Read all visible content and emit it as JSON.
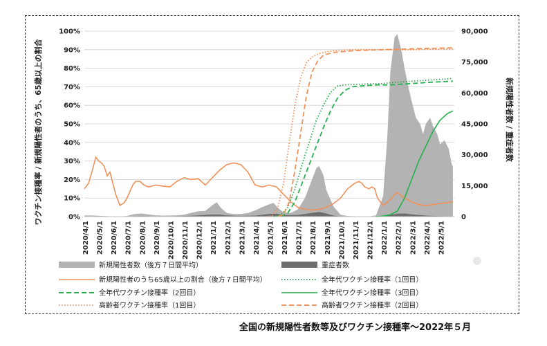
{
  "chart_data": {
    "type": "area",
    "title": "全国の新規陽性者数等及びワクチン接種率〜2022年５月",
    "ylabel_left": "ワクチン接種率 / 新規陽性者のうち、65歳以上の割合",
    "ylabel_right": "新規陽性者数 / 重症者数",
    "ylim_left": [
      0,
      100
    ],
    "ylim_right": [
      0,
      90000
    ],
    "left_ticks": [
      "0%",
      "10%",
      "20%",
      "30%",
      "40%",
      "50%",
      "60%",
      "70%",
      "80%",
      "90%",
      "100%"
    ],
    "right_ticks": [
      "0",
      "15,000",
      "30,000",
      "45,000",
      "60,000",
      "75,000",
      "90,000"
    ],
    "x_ticks": [
      "2020/4/1",
      "2020/5/1",
      "2020/6/1",
      "2020/7/1",
      "2020/8/1",
      "2020/9/1",
      "2020/10/1",
      "2020/11/1",
      "2020/12/1",
      "2021/1/1",
      "2021/2/1",
      "2021/3/1",
      "2021/4/1",
      "2021/5/1",
      "2021/6/1",
      "2021/7/1",
      "2021/8/1",
      "2021/9/1",
      "2021/10/1",
      "2021/11/1",
      "2021/12/1",
      "2022/1/1",
      "2022/2/1",
      "2022/3/1",
      "2022/4/1",
      "2022/5/1"
    ],
    "grid": true,
    "legend_position": "bottom",
    "series": [
      {
        "name": "新規陽性者数（後方７日間平均）",
        "axis": "right",
        "kind": "area",
        "color": "#b3b3b3",
        "points": [
          [
            0,
            600
          ],
          [
            0.5,
            550
          ],
          [
            1,
            400
          ],
          [
            1.5,
            250
          ],
          [
            2,
            80
          ],
          [
            2.5,
            100
          ],
          [
            3,
            350
          ],
          [
            3.5,
            1200
          ],
          [
            4,
            1500
          ],
          [
            4.5,
            1100
          ],
          [
            5,
            600
          ],
          [
            5.5,
            500
          ],
          [
            6,
            550
          ],
          [
            6.5,
            600
          ],
          [
            7,
            900
          ],
          [
            7.5,
            1800
          ],
          [
            8,
            2600
          ],
          [
            8.5,
            2800
          ],
          [
            9,
            5600
          ],
          [
            9.3,
            7000
          ],
          [
            9.6,
            4200
          ],
          [
            10,
            1800
          ],
          [
            10.5,
            1200
          ],
          [
            11,
            1300
          ],
          [
            11.5,
            1700
          ],
          [
            12,
            3000
          ],
          [
            12.5,
            4600
          ],
          [
            13,
            6000
          ],
          [
            13.3,
            6600
          ],
          [
            13.6,
            4300
          ],
          [
            14,
            2000
          ],
          [
            14.5,
            1700
          ],
          [
            15,
            3500
          ],
          [
            15.5,
            9000
          ],
          [
            16,
            18000
          ],
          [
            16.3,
            23500
          ],
          [
            16.5,
            24500
          ],
          [
            16.8,
            20000
          ],
          [
            17,
            13000
          ],
          [
            17.5,
            5000
          ],
          [
            18,
            900
          ],
          [
            18.5,
            300
          ],
          [
            19,
            170
          ],
          [
            19.5,
            140
          ],
          [
            20,
            150
          ],
          [
            20.5,
            600
          ],
          [
            21,
            10000
          ],
          [
            21.3,
            40000
          ],
          [
            21.5,
            70000
          ],
          [
            21.8,
            87000
          ],
          [
            22,
            88500
          ],
          [
            22.3,
            80000
          ],
          [
            22.5,
            72000
          ],
          [
            22.8,
            62000
          ],
          [
            23,
            56000
          ],
          [
            23.3,
            48000
          ],
          [
            23.6,
            45000
          ],
          [
            23.8,
            40000
          ],
          [
            24,
            45000
          ],
          [
            24.3,
            48000
          ],
          [
            24.5,
            44000
          ],
          [
            24.8,
            40000
          ],
          [
            25,
            35000
          ],
          [
            25.3,
            37000
          ],
          [
            25.6,
            33000
          ],
          [
            25.8,
            26000
          ],
          [
            25.9,
            24000
          ]
        ]
      },
      {
        "name": "重症者数",
        "axis": "right",
        "kind": "area",
        "color": "#6e6e6e",
        "points": [
          [
            0,
            100
          ],
          [
            1,
            200
          ],
          [
            2,
            80
          ],
          [
            3,
            100
          ],
          [
            4,
            250
          ],
          [
            5,
            150
          ],
          [
            6,
            150
          ],
          [
            7,
            300
          ],
          [
            8,
            600
          ],
          [
            9,
            1000
          ],
          [
            9.5,
            1000
          ],
          [
            10,
            600
          ],
          [
            11,
            350
          ],
          [
            12,
            500
          ],
          [
            13,
            1300
          ],
          [
            13.5,
            1400
          ],
          [
            14,
            700
          ],
          [
            15,
            800
          ],
          [
            16,
            1800
          ],
          [
            16.5,
            2200
          ],
          [
            17,
            1500
          ],
          [
            17.5,
            500
          ],
          [
            18,
            100
          ],
          [
            19,
            60
          ],
          [
            20,
            40
          ],
          [
            21,
            200
          ],
          [
            22,
            1400
          ],
          [
            22.5,
            1500
          ],
          [
            23,
            1100
          ],
          [
            24,
            500
          ],
          [
            25,
            250
          ],
          [
            25.9,
            150
          ]
        ]
      },
      {
        "name": "新規陽性者のうち65歳以上の割合（後方７日間平均）",
        "axis": "left",
        "kind": "line",
        "style": "solid",
        "color": "#f0915a",
        "points": [
          [
            0,
            15
          ],
          [
            0.3,
            18
          ],
          [
            0.6,
            26
          ],
          [
            0.8,
            32
          ],
          [
            1,
            30
          ],
          [
            1.2,
            29
          ],
          [
            1.4,
            27
          ],
          [
            1.6,
            22
          ],
          [
            1.8,
            24
          ],
          [
            2,
            18
          ],
          [
            2.2,
            12
          ],
          [
            2.5,
            6
          ],
          [
            2.8,
            7.5
          ],
          [
            3,
            10
          ],
          [
            3.4,
            17
          ],
          [
            3.6,
            19
          ],
          [
            3.9,
            19
          ],
          [
            4.2,
            17
          ],
          [
            4.5,
            16
          ],
          [
            5,
            17
          ],
          [
            5.5,
            16.5
          ],
          [
            6,
            16
          ],
          [
            6.5,
            19
          ],
          [
            7,
            21
          ],
          [
            7.5,
            20
          ],
          [
            8,
            20.5
          ],
          [
            8.5,
            17
          ],
          [
            9,
            21
          ],
          [
            9.5,
            25
          ],
          [
            10,
            28
          ],
          [
            10.5,
            29
          ],
          [
            11,
            28
          ],
          [
            11.5,
            24
          ],
          [
            12,
            17
          ],
          [
            12.5,
            16
          ],
          [
            13,
            17
          ],
          [
            13.5,
            16
          ],
          [
            14,
            12
          ],
          [
            14.5,
            8
          ],
          [
            15,
            5
          ],
          [
            15.5,
            4
          ],
          [
            16,
            3.5
          ],
          [
            16.5,
            4
          ],
          [
            17,
            5
          ],
          [
            17.5,
            7
          ],
          [
            18,
            10
          ],
          [
            18.5,
            15
          ],
          [
            19,
            18
          ],
          [
            19.3,
            19
          ],
          [
            19.5,
            18
          ],
          [
            19.7,
            16
          ],
          [
            20,
            15
          ],
          [
            20.2,
            16
          ],
          [
            20.4,
            15
          ],
          [
            20.6,
            10
          ],
          [
            21,
            6
          ],
          [
            21.5,
            9
          ],
          [
            21.8,
            12
          ],
          [
            22,
            13
          ],
          [
            22.5,
            10
          ],
          [
            23,
            8
          ],
          [
            23.5,
            6.5
          ],
          [
            24,
            6
          ],
          [
            24.5,
            6.5
          ],
          [
            25,
            7
          ],
          [
            25.5,
            7.5
          ],
          [
            25.9,
            8
          ]
        ]
      },
      {
        "name": "全年代ワクチン接種率（1回目）",
        "axis": "left",
        "kind": "line",
        "style": "dotted",
        "color": "#22b14c",
        "points": [
          [
            13.3,
            0
          ],
          [
            13.8,
            1
          ],
          [
            14.3,
            5
          ],
          [
            14.8,
            15
          ],
          [
            15.3,
            28
          ],
          [
            15.8,
            40
          ],
          [
            16.3,
            52
          ],
          [
            16.8,
            60
          ],
          [
            17.3,
            67
          ],
          [
            17.8,
            70.5
          ],
          [
            18.3,
            71
          ],
          [
            19,
            71.3
          ],
          [
            20,
            71.5
          ],
          [
            21,
            71.8
          ],
          [
            22,
            72.5
          ],
          [
            23,
            73
          ],
          [
            24,
            73.5
          ],
          [
            25,
            74
          ],
          [
            25.9,
            74.5
          ]
        ]
      },
      {
        "name": "全年代ワクチン接種率（2回目）",
        "axis": "left",
        "kind": "line",
        "style": "dashed",
        "color": "#22b14c",
        "points": [
          [
            13.8,
            0
          ],
          [
            14.3,
            2
          ],
          [
            14.8,
            8
          ],
          [
            15.3,
            18
          ],
          [
            15.8,
            28
          ],
          [
            16.3,
            38
          ],
          [
            16.8,
            48
          ],
          [
            17.3,
            57
          ],
          [
            17.8,
            64
          ],
          [
            18.3,
            68
          ],
          [
            18.8,
            70
          ],
          [
            19.5,
            70.5
          ],
          [
            20.5,
            71
          ],
          [
            21.5,
            71
          ],
          [
            22.5,
            71.5
          ],
          [
            23.5,
            72
          ],
          [
            24.5,
            72.5
          ],
          [
            25.9,
            73
          ]
        ]
      },
      {
        "name": "全年代ワクチン接種率（3回目）",
        "axis": "left",
        "kind": "line",
        "style": "solid",
        "color": "#22b14c",
        "points": [
          [
            20.5,
            0
          ],
          [
            21,
            0.3
          ],
          [
            21.5,
            1
          ],
          [
            22,
            3
          ],
          [
            22.5,
            10
          ],
          [
            23,
            20
          ],
          [
            23.5,
            30
          ],
          [
            24,
            38
          ],
          [
            24.5,
            46
          ],
          [
            25,
            52
          ],
          [
            25.5,
            55.5
          ],
          [
            25.9,
            57
          ]
        ]
      },
      {
        "name": "高齢者ワクチン接種率（1回目）",
        "axis": "left",
        "kind": "line",
        "style": "dotted",
        "color": "#f0915a",
        "points": [
          [
            12.8,
            0
          ],
          [
            13.2,
            0.5
          ],
          [
            13.6,
            5
          ],
          [
            14,
            18
          ],
          [
            14.4,
            40
          ],
          [
            14.8,
            60
          ],
          [
            15.2,
            75
          ],
          [
            15.6,
            83
          ],
          [
            16,
            86
          ],
          [
            16.5,
            88
          ],
          [
            17.5,
            89.5
          ],
          [
            19,
            90
          ],
          [
            21,
            90
          ],
          [
            23,
            90
          ],
          [
            25.9,
            90.5
          ]
        ]
      },
      {
        "name": "高齢者ワクチン接種率（2回目）",
        "axis": "left",
        "kind": "line",
        "style": "dashed",
        "color": "#f0915a",
        "points": [
          [
            13.6,
            0
          ],
          [
            14,
            1
          ],
          [
            14.4,
            8
          ],
          [
            14.8,
            25
          ],
          [
            15.2,
            45
          ],
          [
            15.6,
            65
          ],
          [
            16,
            78
          ],
          [
            16.4,
            84
          ],
          [
            16.8,
            87
          ],
          [
            17.5,
            88.5
          ],
          [
            19,
            89.5
          ],
          [
            21,
            90
          ],
          [
            23,
            90.5
          ],
          [
            25.9,
            91
          ]
        ]
      }
    ]
  }
}
